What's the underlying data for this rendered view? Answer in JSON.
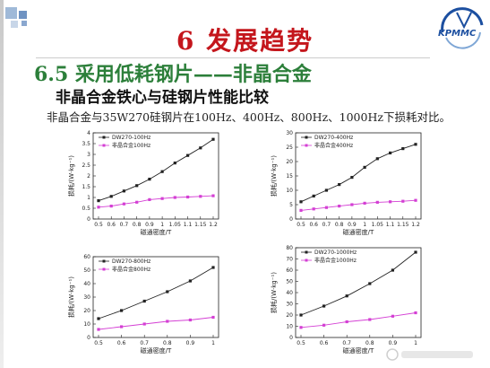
{
  "slide": {
    "title": "6   发展趋势",
    "section_heading": "6.5 采用低耗钢片——非晶合金",
    "subheading": "非晶合金铁心与硅钢片性能比较",
    "caption": "非晶合金与35W270硅钢片在100Hz、400Hz、800Hz、1000Hz下损耗对比。",
    "logo_text": "KPMMC",
    "title_color": "#c4161c",
    "heading_color": "#2c7f3a"
  },
  "chart_data": [
    {
      "type": "line",
      "title": "",
      "xlabel": "磁通密度/T",
      "ylabel": "损耗/(W·kg⁻¹)",
      "xlim": [
        0.5,
        1.2
      ],
      "ylim": [
        0,
        4
      ],
      "x_ticks": [
        "0.5",
        "0.6",
        "0.7",
        "0.8",
        "0.9",
        "1",
        "1.05",
        "1.1",
        "1.15",
        "1.2"
      ],
      "y_ticks": [
        "0",
        "0.5",
        "1",
        "1.5",
        "2",
        "2.5",
        "3",
        "3.5",
        "4"
      ],
      "legend_position": "top-left",
      "series": [
        {
          "name": "DW270-100Hz",
          "color": "#222222",
          "marker": "square",
          "values": [
            0.85,
            1.05,
            1.3,
            1.55,
            1.85,
            2.2,
            2.6,
            2.95,
            3.3,
            3.7
          ]
        },
        {
          "name": "非晶合金100Hz",
          "color": "#d43fd4",
          "marker": "square",
          "values": [
            0.55,
            0.6,
            0.7,
            0.78,
            0.9,
            0.95,
            1.0,
            1.02,
            1.05,
            1.08
          ]
        }
      ]
    },
    {
      "type": "line",
      "title": "",
      "xlabel": "磁通密度/T",
      "ylabel": "损耗/(W·kg⁻¹)",
      "xlim": [
        0.5,
        1.2
      ],
      "ylim": [
        0,
        30
      ],
      "x_ticks": [
        "0.5",
        "0.6",
        "0.7",
        "0.8",
        "0.9",
        "1",
        "1.05",
        "1.1",
        "1.15",
        "1.2"
      ],
      "y_ticks": [
        "0",
        "5",
        "10",
        "15",
        "20",
        "25",
        "30"
      ],
      "legend_position": "top-left",
      "series": [
        {
          "name": "DW270-400Hz",
          "color": "#222222",
          "marker": "square",
          "values": [
            6,
            8,
            10,
            12,
            14.5,
            18,
            21,
            23,
            24.5,
            26
          ]
        },
        {
          "name": "非晶合金400Hz",
          "color": "#d43fd4",
          "marker": "square",
          "values": [
            3,
            3.5,
            4,
            4.5,
            5,
            5.5,
            5.8,
            6,
            6.2,
            6.5
          ]
        }
      ]
    },
    {
      "type": "line",
      "title": "",
      "xlabel": "磁通密度/T",
      "ylabel": "损耗/(W·kg⁻¹)",
      "xlim": [
        0.5,
        1
      ],
      "ylim": [
        0,
        60
      ],
      "x_ticks": [
        "0.5",
        "0.6",
        "0.7",
        "0.8",
        "0.9",
        "1"
      ],
      "y_ticks": [
        "0",
        "10",
        "20",
        "30",
        "40",
        "50",
        "60"
      ],
      "legend_position": "top-left",
      "series": [
        {
          "name": "DW270-800Hz",
          "color": "#222222",
          "marker": "square",
          "values": [
            14,
            20,
            27,
            34,
            42,
            52
          ]
        },
        {
          "name": "非晶合金800Hz",
          "color": "#d43fd4",
          "marker": "square",
          "values": [
            6,
            8,
            10,
            12,
            13,
            15
          ]
        }
      ]
    },
    {
      "type": "line",
      "title": "",
      "xlabel": "磁通密度/T",
      "ylabel": "损耗/(W·kg⁻¹)",
      "xlim": [
        0.5,
        1
      ],
      "ylim": [
        0,
        80
      ],
      "x_ticks": [
        "0.5",
        "0.6",
        "0.7",
        "0.8",
        "0.9",
        "1"
      ],
      "y_ticks": [
        "0",
        "10",
        "20",
        "30",
        "40",
        "50",
        "60",
        "70",
        "80"
      ],
      "legend_position": "top-left",
      "series": [
        {
          "name": "DW270-1000Hz",
          "color": "#222222",
          "marker": "square",
          "values": [
            20,
            28,
            37,
            48,
            60,
            76
          ]
        },
        {
          "name": "非晶合金1000Hz",
          "color": "#d43fd4",
          "marker": "square",
          "values": [
            9,
            11,
            14,
            16,
            19,
            22
          ]
        }
      ]
    }
  ]
}
